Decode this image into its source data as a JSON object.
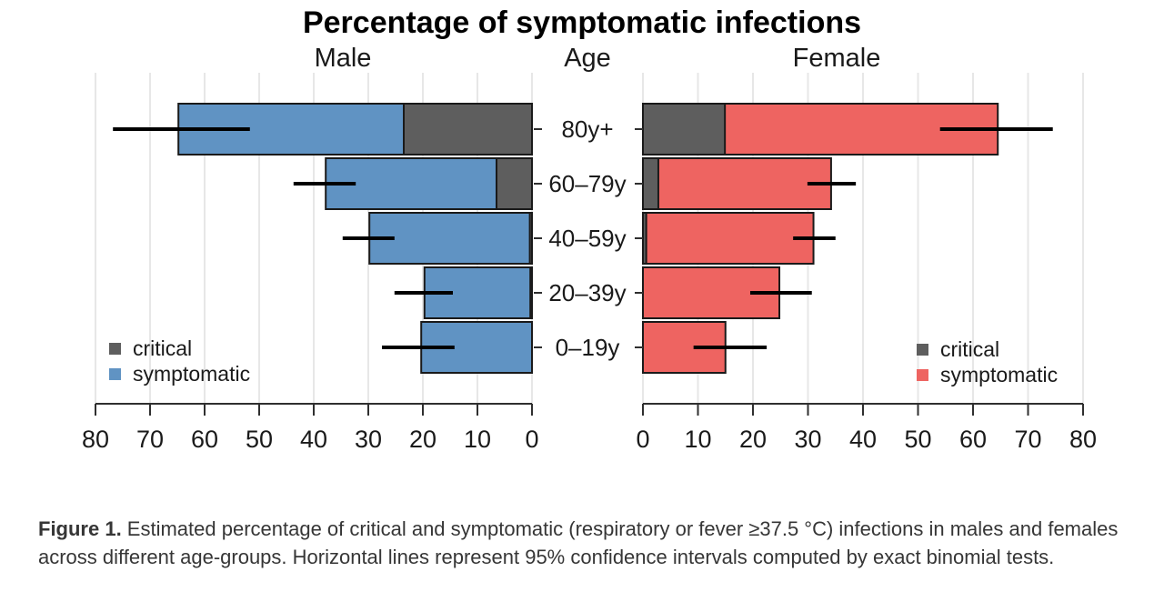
{
  "title": "Percentage of symptomatic infections",
  "headers": {
    "male": "Male",
    "age": "Age",
    "female": "Female"
  },
  "legend": {
    "critical_label": "critical",
    "symptomatic_label": "symptomatic"
  },
  "colors": {
    "male_bar": "#6093C3",
    "female_bar": "#EE6461",
    "critical": "#5E5E5E",
    "bar_outline": "#1A1A1A",
    "grid": "#E7E7E7",
    "axis": "#2F2F2F",
    "ci_line": "#000000",
    "text": "#1A1A1A"
  },
  "caption": {
    "prefix": "Figure 1.",
    "text": " Estimated percentage of critical and symptomatic (respiratory or fever ≥37.5 °C) infections in males and females across different age-groups. Horizontal lines represent 95% confidence intervals computed by exact binomial tests."
  },
  "chart_data": {
    "type": "bar",
    "orientation": "horizontal",
    "subtype": "population-pyramid, stacked with 95% CI whiskers",
    "categories": [
      "80y+",
      "60–79y",
      "40–59y",
      "20–39y",
      "0–19y"
    ],
    "axis": {
      "ticks": [
        0,
        10,
        20,
        30,
        40,
        50,
        60,
        70,
        80
      ],
      "xlim": [
        0,
        80
      ],
      "left_panel_direction": "values increase right-to-left",
      "grid": true
    },
    "series": [
      {
        "name": "Male",
        "symptomatic": [
          64.8,
          37.8,
          29.8,
          19.7,
          20.3
        ],
        "critical": [
          23.5,
          6.5,
          0.4,
          0.3,
          0
        ],
        "ci_low": [
          51.7,
          32.3,
          25.2,
          14.5,
          14.2
        ],
        "ci_high": [
          76.8,
          43.7,
          34.7,
          25.2,
          27.5
        ]
      },
      {
        "name": "Female",
        "symptomatic": [
          64.5,
          34.2,
          31.0,
          24.8,
          15.0
        ],
        "critical": [
          14.9,
          2.8,
          0.6,
          0,
          0
        ],
        "ci_low": [
          54.0,
          29.9,
          27.3,
          19.5,
          9.2
        ],
        "ci_high": [
          74.5,
          38.7,
          35.0,
          30.7,
          22.5
        ]
      }
    ]
  }
}
